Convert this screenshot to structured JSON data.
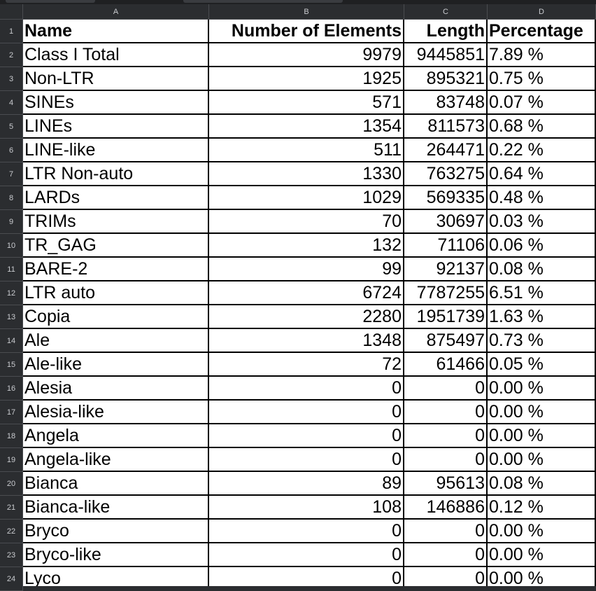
{
  "columns": [
    "A",
    "B",
    "C",
    "D"
  ],
  "rows": [
    {
      "num": "1",
      "cells": [
        "Name",
        "Number of Elements",
        "Length",
        "Percentage"
      ]
    },
    {
      "num": "2",
      "cells": [
        "Class I Total",
        "9979",
        "9445851",
        "7.89 %"
      ]
    },
    {
      "num": "3",
      "cells": [
        "Non-LTR",
        "1925",
        "895321",
        "0.75 %"
      ]
    },
    {
      "num": "4",
      "cells": [
        "SINEs",
        "571",
        "83748",
        "0.07 %"
      ]
    },
    {
      "num": "5",
      "cells": [
        "LINEs",
        "1354",
        "811573",
        "0.68 %"
      ]
    },
    {
      "num": "6",
      "cells": [
        "LINE-like",
        "511",
        "264471",
        "0.22 %"
      ]
    },
    {
      "num": "7",
      "cells": [
        "LTR Non-auto",
        "1330",
        "763275",
        "0.64 %"
      ]
    },
    {
      "num": "8",
      "cells": [
        "LARDs",
        "1029",
        "569335",
        "0.48 %"
      ]
    },
    {
      "num": "9",
      "cells": [
        "TRIMs",
        "70",
        "30697",
        "0.03 %"
      ]
    },
    {
      "num": "10",
      "cells": [
        "TR_GAG",
        "132",
        "71106",
        "0.06 %"
      ]
    },
    {
      "num": "11",
      "cells": [
        "BARE-2",
        "99",
        "92137",
        "0.08 %"
      ]
    },
    {
      "num": "12",
      "cells": [
        "LTR auto",
        "6724",
        "7787255",
        "6.51 %"
      ]
    },
    {
      "num": "13",
      "cells": [
        "Copia",
        "2280",
        "1951739",
        "1.63 %"
      ]
    },
    {
      "num": "14",
      "cells": [
        "Ale",
        "1348",
        "875497",
        "0.73 %"
      ]
    },
    {
      "num": "15",
      "cells": [
        "Ale-like",
        "72",
        "61466",
        "0.05 %"
      ]
    },
    {
      "num": "16",
      "cells": [
        "Alesia",
        "0",
        "0",
        "0.00 %"
      ]
    },
    {
      "num": "17",
      "cells": [
        "Alesia-like",
        "0",
        "0",
        "0.00 %"
      ]
    },
    {
      "num": "18",
      "cells": [
        "Angela",
        "0",
        "0",
        "0.00 %"
      ]
    },
    {
      "num": "19",
      "cells": [
        "Angela-like",
        "0",
        "0",
        "0.00 %"
      ]
    },
    {
      "num": "20",
      "cells": [
        "Bianca",
        "89",
        "95613",
        "0.08 %"
      ]
    },
    {
      "num": "21",
      "cells": [
        "Bianca-like",
        "108",
        "146886",
        "0.12 %"
      ]
    },
    {
      "num": "22",
      "cells": [
        "Bryco",
        "0",
        "0",
        "0.00 %"
      ]
    },
    {
      "num": "23",
      "cells": [
        "Bryco-like",
        "0",
        "0",
        "0.00 %"
      ]
    },
    {
      "num": "24",
      "cells": [
        "Lyco",
        "0",
        "0",
        "0.00 %"
      ]
    }
  ]
}
